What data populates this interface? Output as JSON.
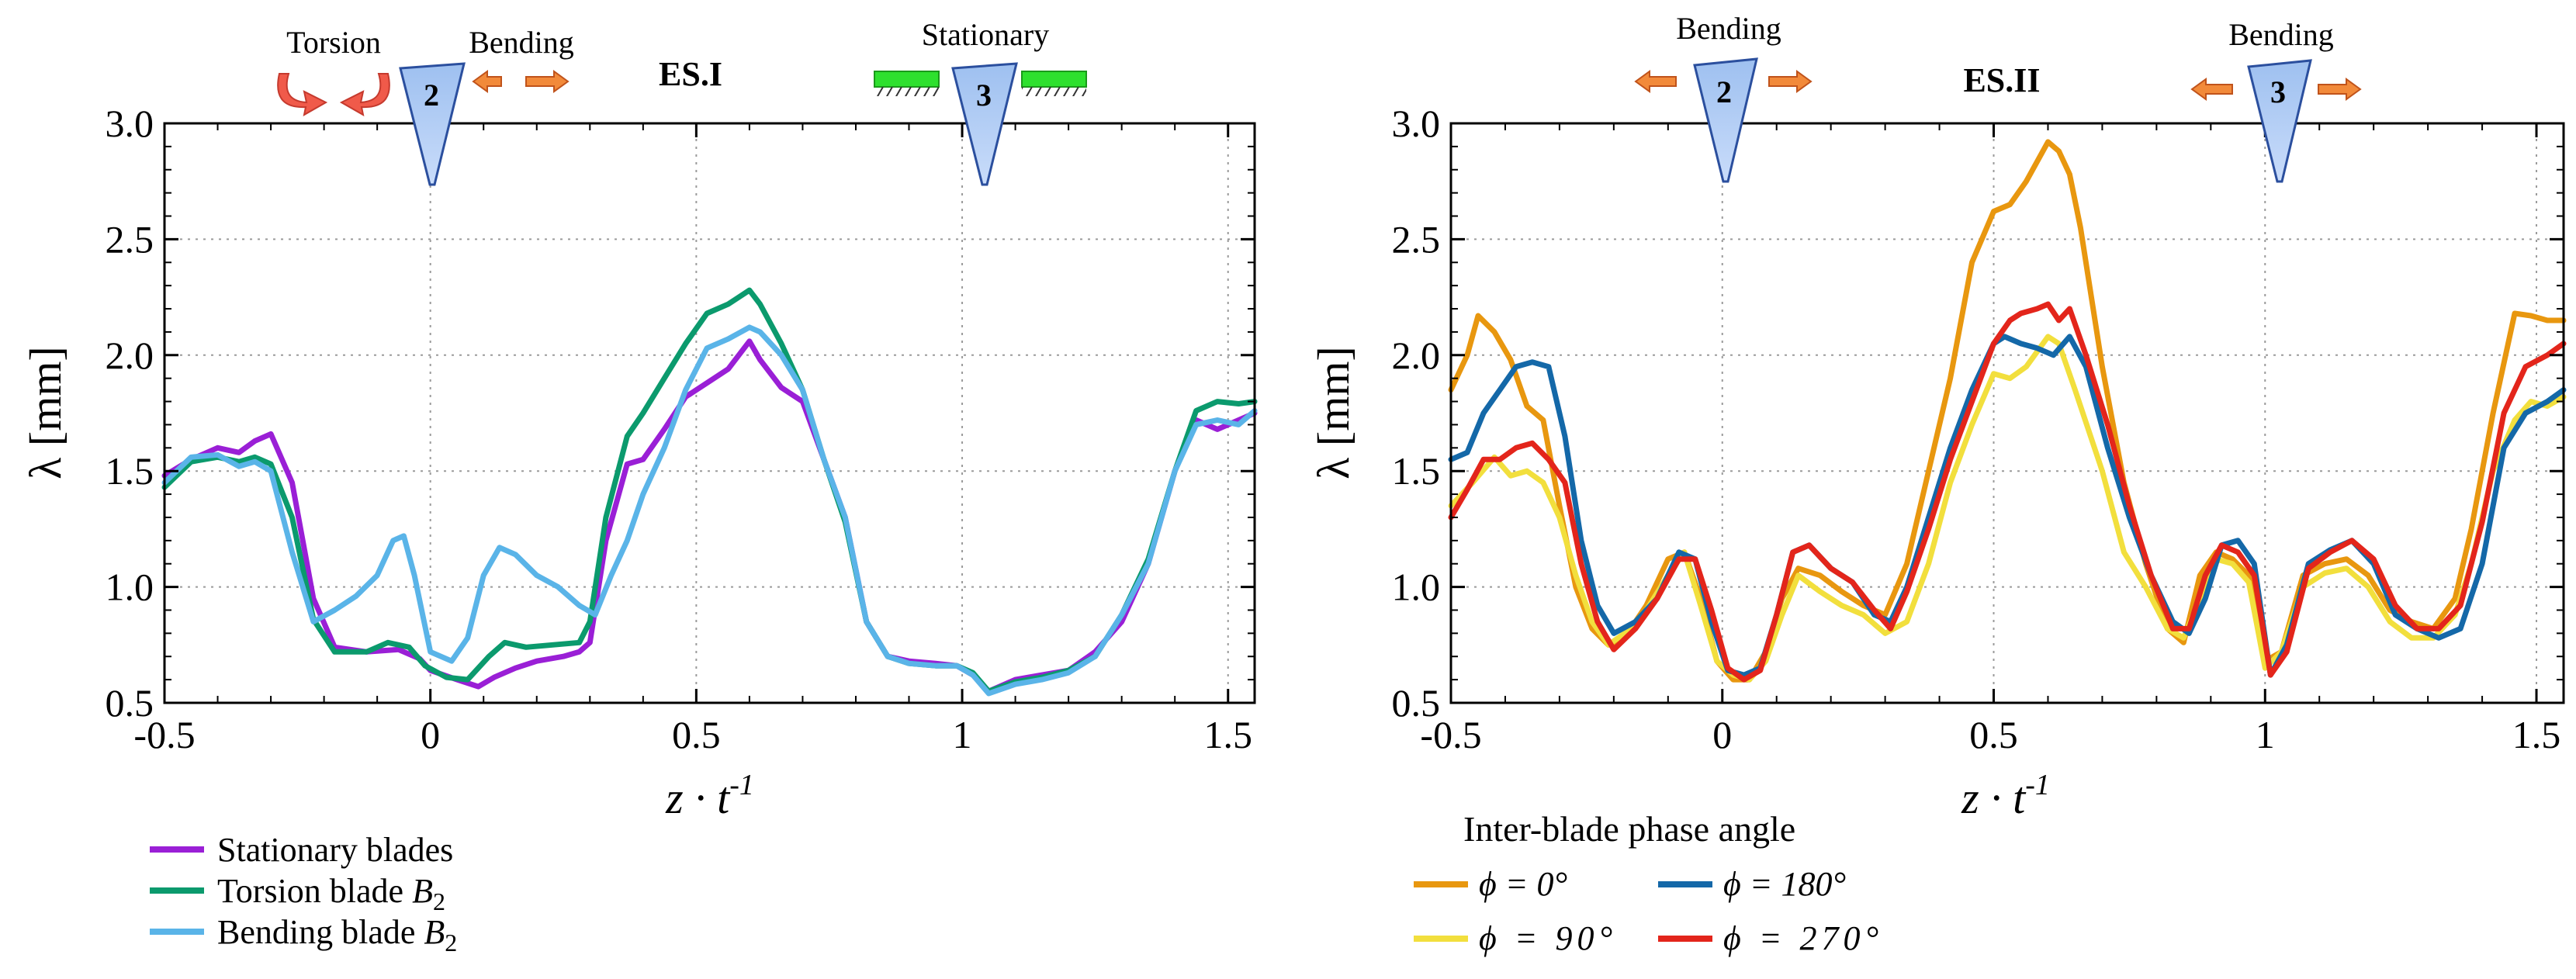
{
  "chart_data": [
    {
      "type": "line",
      "panel": "left",
      "title": "ES.I",
      "xlabel_main": "z · t",
      "xlabel_sup": "-1",
      "ylabel": "λ [mm]",
      "xlim": [
        -0.5,
        1.55
      ],
      "ylim": [
        0.5,
        3.0
      ],
      "xticks": [
        -0.5,
        0,
        0.5,
        1,
        1.5
      ],
      "xtick_labels": [
        "-0.5",
        "0",
        "0.5",
        "1",
        "1.5"
      ],
      "yticks": [
        0.5,
        1.0,
        1.5,
        2.0,
        2.5,
        3.0
      ],
      "ytick_labels": [
        "0.5",
        "1.0",
        "1.5",
        "2.0",
        "2.5",
        "3.0"
      ],
      "annotations": {
        "left_mode": "Torsion",
        "left_blade_mode": "Bending",
        "blade_a": "2",
        "right_mode": "Stationary",
        "blade_b": "3"
      },
      "legend_title": "",
      "series": [
        {
          "name": "Stationary blades",
          "color": "#9a1fd6",
          "x": [
            -0.5,
            -0.45,
            -0.4,
            -0.36,
            -0.33,
            -0.3,
            -0.26,
            -0.22,
            -0.18,
            -0.12,
            -0.06,
            -0.02,
            0.0,
            0.05,
            0.09,
            0.12,
            0.16,
            0.2,
            0.25,
            0.28,
            0.3,
            0.33,
            0.37,
            0.4,
            0.44,
            0.48,
            0.52,
            0.56,
            0.6,
            0.62,
            0.66,
            0.7,
            0.74,
            0.78,
            0.82,
            0.86,
            0.9,
            0.95,
            0.99,
            1.02,
            1.05,
            1.1,
            1.15,
            1.2,
            1.25,
            1.3,
            1.35,
            1.4,
            1.44,
            1.48,
            1.52,
            1.55
          ],
          "y": [
            1.48,
            1.55,
            1.6,
            1.58,
            1.63,
            1.66,
            1.45,
            0.95,
            0.74,
            0.72,
            0.73,
            0.69,
            0.64,
            0.6,
            0.57,
            0.61,
            0.65,
            0.68,
            0.7,
            0.72,
            0.76,
            1.2,
            1.53,
            1.55,
            1.68,
            1.82,
            1.88,
            1.94,
            2.06,
            1.98,
            1.86,
            1.8,
            1.55,
            1.3,
            0.85,
            0.7,
            0.68,
            0.67,
            0.66,
            0.62,
            0.55,
            0.6,
            0.62,
            0.64,
            0.72,
            0.85,
            1.1,
            1.5,
            1.72,
            1.68,
            1.72,
            1.75
          ]
        },
        {
          "name": "Torsion blade B2",
          "color": "#0b9a6d",
          "x": [
            -0.5,
            -0.45,
            -0.4,
            -0.36,
            -0.33,
            -0.3,
            -0.26,
            -0.22,
            -0.18,
            -0.12,
            -0.08,
            -0.04,
            -0.01,
            0.03,
            0.07,
            0.11,
            0.14,
            0.18,
            0.23,
            0.28,
            0.3,
            0.33,
            0.37,
            0.4,
            0.44,
            0.48,
            0.52,
            0.56,
            0.6,
            0.62,
            0.66,
            0.7,
            0.74,
            0.78,
            0.82,
            0.86,
            0.9,
            0.95,
            0.99,
            1.02,
            1.05,
            1.1,
            1.15,
            1.2,
            1.25,
            1.3,
            1.35,
            1.4,
            1.44,
            1.48,
            1.52,
            1.55
          ],
          "y": [
            1.43,
            1.54,
            1.56,
            1.54,
            1.56,
            1.53,
            1.3,
            0.86,
            0.72,
            0.72,
            0.76,
            0.74,
            0.66,
            0.61,
            0.6,
            0.7,
            0.76,
            0.74,
            0.75,
            0.76,
            0.85,
            1.3,
            1.65,
            1.75,
            1.9,
            2.05,
            2.18,
            2.22,
            2.28,
            2.22,
            2.05,
            1.85,
            1.55,
            1.28,
            0.85,
            0.7,
            0.67,
            0.66,
            0.66,
            0.63,
            0.55,
            0.59,
            0.61,
            0.64,
            0.7,
            0.88,
            1.12,
            1.5,
            1.76,
            1.8,
            1.79,
            1.8
          ]
        },
        {
          "name": "Bending blade B2",
          "color": "#5ab4e8",
          "x": [
            -0.5,
            -0.45,
            -0.4,
            -0.36,
            -0.33,
            -0.3,
            -0.26,
            -0.22,
            -0.18,
            -0.14,
            -0.1,
            -0.07,
            -0.05,
            -0.03,
            0.0,
            0.04,
            0.07,
            0.1,
            0.13,
            0.16,
            0.2,
            0.24,
            0.28,
            0.31,
            0.34,
            0.37,
            0.4,
            0.44,
            0.48,
            0.52,
            0.56,
            0.6,
            0.62,
            0.66,
            0.7,
            0.74,
            0.78,
            0.82,
            0.86,
            0.9,
            0.95,
            0.99,
            1.02,
            1.05,
            1.1,
            1.15,
            1.2,
            1.25,
            1.3,
            1.35,
            1.4,
            1.44,
            1.48,
            1.52,
            1.55
          ],
          "y": [
            1.45,
            1.56,
            1.57,
            1.52,
            1.54,
            1.5,
            1.15,
            0.85,
            0.9,
            0.96,
            1.05,
            1.2,
            1.22,
            1.05,
            0.72,
            0.68,
            0.78,
            1.05,
            1.17,
            1.14,
            1.05,
            1.0,
            0.92,
            0.88,
            1.05,
            1.2,
            1.4,
            1.6,
            1.85,
            2.03,
            2.07,
            2.12,
            2.1,
            2.0,
            1.85,
            1.55,
            1.3,
            0.85,
            0.7,
            0.67,
            0.66,
            0.66,
            0.62,
            0.54,
            0.58,
            0.6,
            0.63,
            0.7,
            0.88,
            1.1,
            1.5,
            1.7,
            1.72,
            1.7,
            1.76
          ]
        }
      ]
    },
    {
      "type": "line",
      "panel": "right",
      "title": "ES.II",
      "xlabel_main": "z · t",
      "xlabel_sup": "-1",
      "ylabel": "λ [mm]",
      "xlim": [
        -0.5,
        1.55
      ],
      "ylim": [
        0.5,
        3.0
      ],
      "xticks": [
        -0.5,
        0,
        0.5,
        1,
        1.5
      ],
      "xtick_labels": [
        "-0.5",
        "0",
        "0.5",
        "1",
        "1.5"
      ],
      "yticks": [
        0.5,
        1.0,
        1.5,
        2.0,
        2.5,
        3.0
      ],
      "ytick_labels": [
        "0.5",
        "1.0",
        "1.5",
        "2.0",
        "2.5",
        "3.0"
      ],
      "annotations": {
        "left_blade_mode": "Bending",
        "blade_a": "2",
        "right_blade_mode": "Bending",
        "blade_b": "3"
      },
      "legend_title": "Inter-blade phase angle",
      "series": [
        {
          "name": "ϕ = 0°",
          "color": "#e8970f",
          "x": [
            -0.5,
            -0.47,
            -0.45,
            -0.42,
            -0.39,
            -0.36,
            -0.33,
            -0.3,
            -0.27,
            -0.24,
            -0.21,
            -0.18,
            -0.14,
            -0.1,
            -0.07,
            -0.04,
            -0.01,
            0.02,
            0.05,
            0.08,
            0.11,
            0.14,
            0.18,
            0.22,
            0.26,
            0.3,
            0.34,
            0.38,
            0.42,
            0.46,
            0.5,
            0.53,
            0.56,
            0.6,
            0.62,
            0.64,
            0.66,
            0.7,
            0.74,
            0.78,
            0.82,
            0.85,
            0.88,
            0.91,
            0.94,
            0.97,
            1.0,
            1.03,
            1.07,
            1.11,
            1.15,
            1.19,
            1.23,
            1.27,
            1.31,
            1.35,
            1.38,
            1.42,
            1.46,
            1.49,
            1.52,
            1.55
          ],
          "y": [
            1.85,
            2.0,
            2.17,
            2.1,
            1.98,
            1.78,
            1.72,
            1.35,
            1.0,
            0.82,
            0.75,
            0.78,
            0.92,
            1.12,
            1.15,
            0.95,
            0.68,
            0.6,
            0.6,
            0.72,
            0.95,
            1.08,
            1.05,
            0.98,
            0.92,
            0.88,
            1.1,
            1.5,
            1.9,
            2.4,
            2.62,
            2.65,
            2.75,
            2.92,
            2.88,
            2.78,
            2.55,
            1.95,
            1.45,
            1.1,
            0.82,
            0.76,
            1.05,
            1.15,
            1.12,
            1.05,
            0.68,
            0.72,
            1.05,
            1.1,
            1.12,
            1.05,
            0.9,
            0.85,
            0.82,
            0.95,
            1.25,
            1.75,
            2.18,
            2.17,
            2.15,
            2.15
          ]
        },
        {
          "name": "ϕ = 90°",
          "color": "#f2df3d",
          "x": [
            -0.5,
            -0.46,
            -0.42,
            -0.39,
            -0.36,
            -0.33,
            -0.3,
            -0.27,
            -0.24,
            -0.21,
            -0.18,
            -0.14,
            -0.1,
            -0.07,
            -0.04,
            -0.01,
            0.02,
            0.05,
            0.08,
            0.11,
            0.14,
            0.18,
            0.22,
            0.26,
            0.3,
            0.34,
            0.38,
            0.42,
            0.46,
            0.5,
            0.53,
            0.56,
            0.6,
            0.62,
            0.65,
            0.7,
            0.74,
            0.78,
            0.82,
            0.85,
            0.88,
            0.91,
            0.94,
            0.97,
            1.0,
            1.03,
            1.07,
            1.11,
            1.15,
            1.19,
            1.23,
            1.27,
            1.31,
            1.35,
            1.38,
            1.42,
            1.46,
            1.49,
            1.52,
            1.55
          ],
          "y": [
            1.35,
            1.45,
            1.56,
            1.48,
            1.5,
            1.45,
            1.3,
            1.05,
            0.85,
            0.75,
            0.8,
            0.9,
            1.05,
            1.15,
            0.92,
            0.68,
            0.62,
            0.6,
            0.68,
            0.88,
            1.05,
            0.98,
            0.92,
            0.88,
            0.8,
            0.85,
            1.1,
            1.45,
            1.7,
            1.92,
            1.9,
            1.95,
            2.08,
            2.05,
            1.85,
            1.5,
            1.15,
            1.0,
            0.82,
            0.78,
            0.95,
            1.12,
            1.1,
            1.02,
            0.65,
            0.72,
            1.0,
            1.06,
            1.08,
            1.0,
            0.85,
            0.78,
            0.78,
            0.88,
            1.1,
            1.5,
            1.72,
            1.8,
            1.78,
            1.82
          ]
        },
        {
          "name": "ϕ = 180°",
          "color": "#1468a8",
          "x": [
            -0.5,
            -0.47,
            -0.44,
            -0.41,
            -0.38,
            -0.35,
            -0.32,
            -0.29,
            -0.26,
            -0.23,
            -0.2,
            -0.16,
            -0.12,
            -0.08,
            -0.05,
            -0.02,
            0.01,
            0.04,
            0.07,
            0.1,
            0.13,
            0.16,
            0.2,
            0.24,
            0.28,
            0.31,
            0.34,
            0.38,
            0.42,
            0.46,
            0.5,
            0.52,
            0.55,
            0.58,
            0.61,
            0.64,
            0.67,
            0.71,
            0.75,
            0.79,
            0.83,
            0.86,
            0.89,
            0.92,
            0.95,
            0.98,
            1.01,
            1.04,
            1.08,
            1.12,
            1.16,
            1.2,
            1.24,
            1.28,
            1.32,
            1.36,
            1.4,
            1.44,
            1.48,
            1.52,
            1.55
          ],
          "y": [
            1.55,
            1.58,
            1.75,
            1.85,
            1.95,
            1.97,
            1.95,
            1.65,
            1.2,
            0.92,
            0.8,
            0.85,
            0.95,
            1.15,
            1.12,
            0.85,
            0.64,
            0.62,
            0.65,
            0.88,
            1.15,
            1.18,
            1.08,
            1.02,
            0.88,
            0.85,
            1.0,
            1.3,
            1.6,
            1.85,
            2.05,
            2.08,
            2.05,
            2.03,
            2.0,
            2.08,
            1.95,
            1.6,
            1.3,
            1.05,
            0.85,
            0.8,
            0.95,
            1.18,
            1.2,
            1.1,
            0.62,
            0.75,
            1.1,
            1.16,
            1.2,
            1.1,
            0.88,
            0.82,
            0.78,
            0.82,
            1.1,
            1.6,
            1.75,
            1.8,
            1.85
          ]
        },
        {
          "name": "ϕ = 270°",
          "color": "#e3251b",
          "x": [
            -0.5,
            -0.47,
            -0.44,
            -0.41,
            -0.38,
            -0.35,
            -0.32,
            -0.29,
            -0.26,
            -0.23,
            -0.2,
            -0.16,
            -0.12,
            -0.08,
            -0.05,
            -0.02,
            0.01,
            0.04,
            0.07,
            0.1,
            0.13,
            0.16,
            0.2,
            0.24,
            0.28,
            0.31,
            0.34,
            0.38,
            0.42,
            0.46,
            0.5,
            0.53,
            0.55,
            0.58,
            0.6,
            0.62,
            0.64,
            0.67,
            0.71,
            0.75,
            0.79,
            0.83,
            0.86,
            0.89,
            0.92,
            0.95,
            0.98,
            1.01,
            1.04,
            1.08,
            1.12,
            1.16,
            1.2,
            1.24,
            1.28,
            1.32,
            1.36,
            1.4,
            1.44,
            1.48,
            1.52,
            1.55
          ],
          "y": [
            1.3,
            1.42,
            1.55,
            1.55,
            1.6,
            1.62,
            1.55,
            1.45,
            1.1,
            0.85,
            0.73,
            0.82,
            0.95,
            1.12,
            1.12,
            0.9,
            0.65,
            0.6,
            0.64,
            0.88,
            1.15,
            1.18,
            1.08,
            1.02,
            0.9,
            0.82,
            0.98,
            1.25,
            1.55,
            1.8,
            2.05,
            2.15,
            2.18,
            2.2,
            2.22,
            2.15,
            2.2,
            2.0,
            1.7,
            1.35,
            1.05,
            0.82,
            0.82,
            1.05,
            1.18,
            1.15,
            1.05,
            0.62,
            0.72,
            1.08,
            1.15,
            1.2,
            1.12,
            0.92,
            0.82,
            0.82,
            0.92,
            1.28,
            1.75,
            1.95,
            2.0,
            2.05
          ]
        }
      ]
    }
  ]
}
